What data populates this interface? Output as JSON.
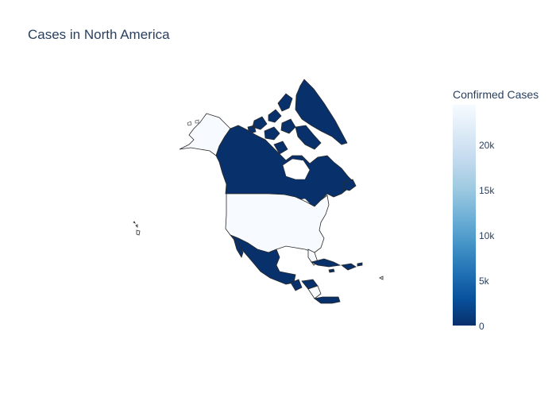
{
  "chart": {
    "title": "Cases in North America"
  },
  "colorbar": {
    "title": "Confirmed Cases",
    "ticks": [
      "20k",
      "15k",
      "10k",
      "5k",
      "0"
    ]
  },
  "colors": {
    "low": "#08306b",
    "mid": "#2171b5",
    "high": "#f7fbff",
    "outline": "#2a2a2a"
  },
  "chart_data": {
    "type": "choropleth",
    "title": "Cases in North America",
    "colorbar_title": "Confirmed Cases",
    "range": [
      0,
      24500
    ],
    "regions": [
      {
        "name": "United States",
        "value": 24500
      },
      {
        "name": "Canada",
        "value": 800
      },
      {
        "name": "Greenland",
        "value": 0
      },
      {
        "name": "Mexico",
        "value": 400
      },
      {
        "name": "Guatemala",
        "value": 200
      },
      {
        "name": "Cuba",
        "value": 300
      },
      {
        "name": "Dominican Republic",
        "value": 500
      },
      {
        "name": "Panama",
        "value": 600
      },
      {
        "name": "Honduras",
        "value": 100
      },
      {
        "name": "Costa Rica",
        "value": 200
      },
      {
        "name": "Nicaragua",
        "value": 0
      },
      {
        "name": "Jamaica",
        "value": 50
      }
    ]
  }
}
